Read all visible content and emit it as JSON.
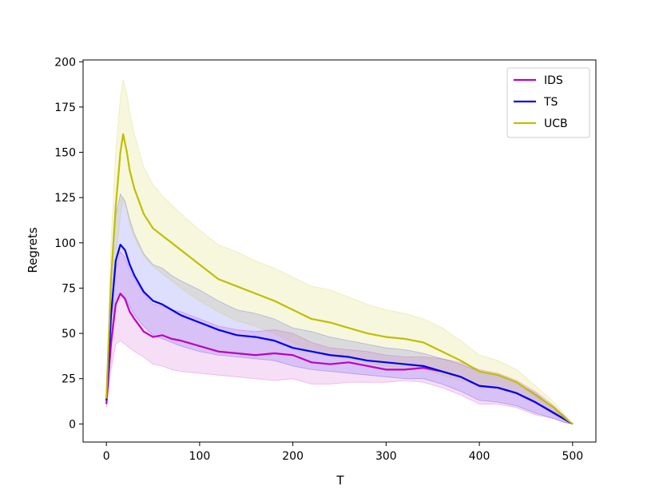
{
  "chart_data": {
    "type": "line",
    "title": "",
    "xlabel": "T",
    "ylabel": "Regrets",
    "xlim": [
      -25,
      525
    ],
    "ylim": [
      -10,
      201
    ],
    "xticks": [
      0,
      100,
      200,
      300,
      400,
      500
    ],
    "yticks": [
      0,
      25,
      50,
      75,
      100,
      125,
      150,
      175,
      200
    ],
    "legend": "top-right",
    "grid": false,
    "series": [
      {
        "name": "IDS",
        "color": "#bf00bf",
        "x": [
          0,
          5,
          10,
          15,
          20,
          25,
          30,
          40,
          50,
          60,
          70,
          80,
          100,
          120,
          140,
          160,
          180,
          200,
          220,
          240,
          260,
          280,
          300,
          320,
          340,
          360,
          380,
          400,
          420,
          440,
          460,
          480,
          490,
          500
        ],
        "y": [
          11,
          45,
          66,
          72,
          69,
          62,
          58,
          51,
          48,
          49,
          47,
          46,
          43,
          40,
          39,
          38,
          39,
          38,
          34,
          33,
          34,
          32,
          30,
          30,
          31,
          29,
          26,
          21,
          20,
          17,
          12,
          6,
          3,
          0
        ],
        "lower": [
          9,
          30,
          44,
          46,
          44,
          42,
          40,
          37,
          33,
          32,
          30,
          29,
          28,
          27,
          26,
          25,
          24,
          25,
          22,
          22,
          23,
          23,
          23,
          24,
          23,
          20,
          16,
          11,
          11,
          9,
          5,
          3,
          1,
          0
        ],
        "upper": [
          13,
          60,
          85,
          95,
          92,
          85,
          80,
          72,
          66,
          65,
          63,
          62,
          58,
          54,
          52,
          51,
          52,
          50,
          45,
          42,
          41,
          40,
          38,
          37,
          37,
          36,
          34,
          30,
          28,
          24,
          18,
          10,
          5,
          0
        ]
      },
      {
        "name": "TS",
        "color": "#0000ee",
        "x": [
          0,
          5,
          10,
          15,
          20,
          25,
          30,
          40,
          50,
          60,
          70,
          80,
          100,
          120,
          140,
          160,
          180,
          200,
          220,
          240,
          260,
          280,
          300,
          320,
          340,
          360,
          380,
          400,
          420,
          440,
          460,
          480,
          490,
          500
        ],
        "y": [
          13,
          60,
          90,
          99,
          96,
          88,
          82,
          73,
          68,
          66,
          63,
          60,
          56,
          52,
          49,
          48,
          46,
          42,
          40,
          38,
          37,
          35,
          34,
          33,
          32,
          29,
          26,
          21,
          20,
          17,
          12,
          6,
          3,
          0
        ],
        "lower": [
          11,
          40,
          65,
          72,
          70,
          65,
          60,
          54,
          49,
          47,
          45,
          43,
          40,
          38,
          37,
          36,
          35,
          32,
          30,
          29,
          28,
          27,
          26,
          25,
          25,
          22,
          18,
          13,
          12,
          10,
          6,
          3,
          1,
          0
        ],
        "upper": [
          15,
          80,
          115,
          127,
          123,
          113,
          105,
          94,
          88,
          86,
          82,
          79,
          74,
          68,
          63,
          61,
          58,
          53,
          51,
          48,
          46,
          44,
          42,
          41,
          39,
          36,
          33,
          29,
          27,
          23,
          17,
          9,
          5,
          0
        ]
      },
      {
        "name": "UCB",
        "color": "#bfbf00",
        "x": [
          0,
          5,
          10,
          15,
          18,
          22,
          25,
          30,
          40,
          50,
          60,
          70,
          80,
          100,
          120,
          140,
          160,
          180,
          200,
          220,
          240,
          260,
          280,
          300,
          320,
          340,
          360,
          380,
          400,
          420,
          440,
          460,
          480,
          490,
          500
        ],
        "y": [
          14,
          80,
          120,
          150,
          160,
          150,
          140,
          130,
          116,
          108,
          104,
          100,
          96,
          88,
          80,
          76,
          72,
          68,
          63,
          58,
          56,
          53,
          50,
          48,
          47,
          45,
          40,
          35,
          29,
          27,
          23,
          16,
          9,
          4,
          0
        ],
        "lower": [
          12,
          60,
          90,
          115,
          125,
          118,
          110,
          103,
          93,
          87,
          83,
          79,
          75,
          68,
          62,
          57,
          54,
          50,
          45,
          40,
          38,
          36,
          34,
          32,
          31,
          30,
          27,
          24,
          21,
          20,
          17,
          12,
          7,
          3,
          0
        ],
        "upper": [
          16,
          100,
          150,
          180,
          190,
          182,
          172,
          160,
          142,
          132,
          126,
          121,
          116,
          107,
          99,
          95,
          90,
          86,
          81,
          76,
          74,
          70,
          66,
          63,
          61,
          58,
          53,
          46,
          38,
          35,
          30,
          21,
          12,
          6,
          0
        ]
      }
    ]
  }
}
